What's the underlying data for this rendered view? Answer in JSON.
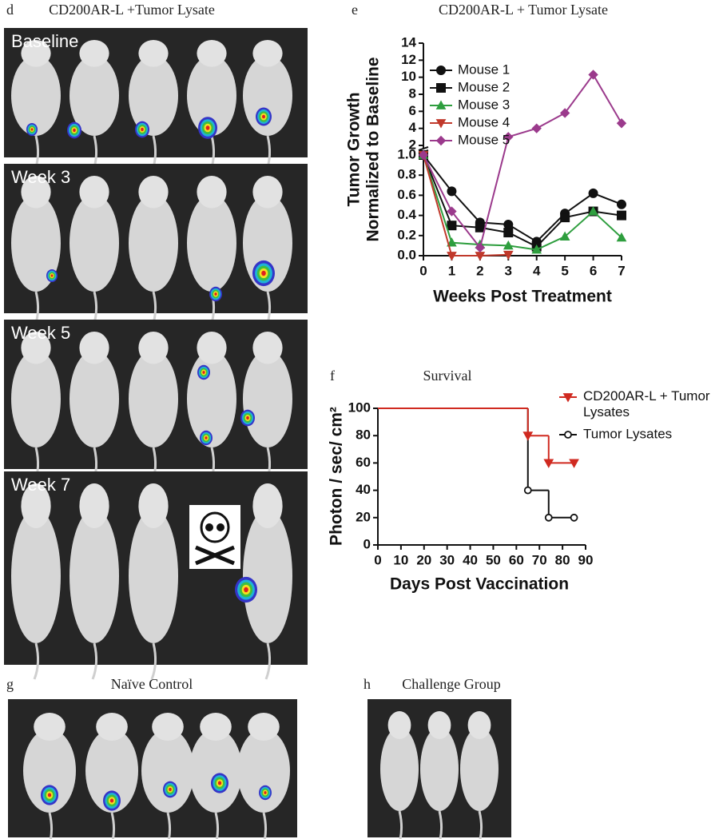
{
  "photo_panels": [
    {
      "label": "d",
      "title": "CD200AR-L +Tumor Lysate",
      "rows": [
        "Baseline",
        "Week 3",
        "Week 5",
        "Week 7"
      ]
    },
    {
      "label": "g",
      "title": "Naïve Control"
    },
    {
      "label": "h",
      "title": "Challenge Group"
    }
  ],
  "chart_data": [
    {
      "type": "line",
      "panel_label": "e",
      "title": "CD200AR-L + Tumor Lysate",
      "x_label": "Weeks Post Treatment",
      "y_label": [
        "Tumor Growth",
        "Normalized to Baseline"
      ],
      "x": [
        0,
        1,
        2,
        3,
        4,
        5,
        6,
        7
      ],
      "xlim": [
        0,
        7
      ],
      "xticks": [
        0,
        1,
        2,
        3,
        4,
        5,
        6,
        7
      ],
      "ylim": [
        0,
        14
      ],
      "ybreak": [
        1,
        2
      ],
      "yticks": [
        {
          "value": 0,
          "label": "0.0"
        },
        {
          "value": 0.2,
          "label": "0.2"
        },
        {
          "value": 0.4,
          "label": "0.4"
        },
        {
          "value": 0.6,
          "label": "0.6"
        },
        {
          "value": 0.8,
          "label": "0.8"
        },
        {
          "value": 1,
          "label": "1.0"
        },
        2,
        4,
        6,
        8,
        10,
        12,
        14
      ],
      "legend": "upper-left",
      "series": [
        {
          "name": "Mouse 1",
          "color": "#111111",
          "marker": "circle",
          "values": [
            1,
            0.64,
            0.33,
            0.31,
            0.14,
            0.42,
            0.62,
            0.51
          ]
        },
        {
          "name": "Mouse 2",
          "color": "#111111",
          "marker": "square",
          "values": [
            1,
            0.3,
            0.28,
            0.23,
            0.09,
            0.38,
            0.44,
            0.4
          ]
        },
        {
          "name": "Mouse 3",
          "color": "#2e9e3e",
          "marker": "triangle-up",
          "values": [
            1,
            0.13,
            0.11,
            0.1,
            0.06,
            0.19,
            0.44,
            0.18
          ]
        },
        {
          "name": "Mouse 4",
          "color": "#c0392b",
          "marker": "triangle-down",
          "values": [
            1,
            0,
            0,
            0.01,
            null,
            null,
            null,
            null
          ]
        },
        {
          "name": "Mouse 5",
          "color": "#9b3a8c",
          "marker": "diamond",
          "values": [
            1,
            0.44,
            0.08,
            3,
            4,
            5.8,
            10.3,
            4.6
          ]
        }
      ]
    },
    {
      "type": "step",
      "panel_label": "f",
      "title": "Survival",
      "x_label": "Days Post Vaccination",
      "y_label": [
        "Photon / sec/ cm²"
      ],
      "x": [
        0,
        65,
        74,
        85
      ],
      "xlim": [
        0,
        90
      ],
      "xticks": [
        0,
        10,
        20,
        30,
        40,
        50,
        60,
        70,
        80,
        90
      ],
      "ylim": [
        0,
        100
      ],
      "yticks": [
        0,
        20,
        40,
        60,
        80,
        100
      ],
      "legend": "upper-right",
      "series": [
        {
          "name": "Tumor Lysates",
          "color": "#111111",
          "marker": "open-circle",
          "values": [
            100,
            40,
            20,
            20
          ]
        },
        {
          "name": "CD200AR-L + Tumor Lysates",
          "color": "#d02a20",
          "marker": "triangle-down",
          "values": [
            100,
            80,
            60,
            60
          ]
        }
      ]
    }
  ]
}
